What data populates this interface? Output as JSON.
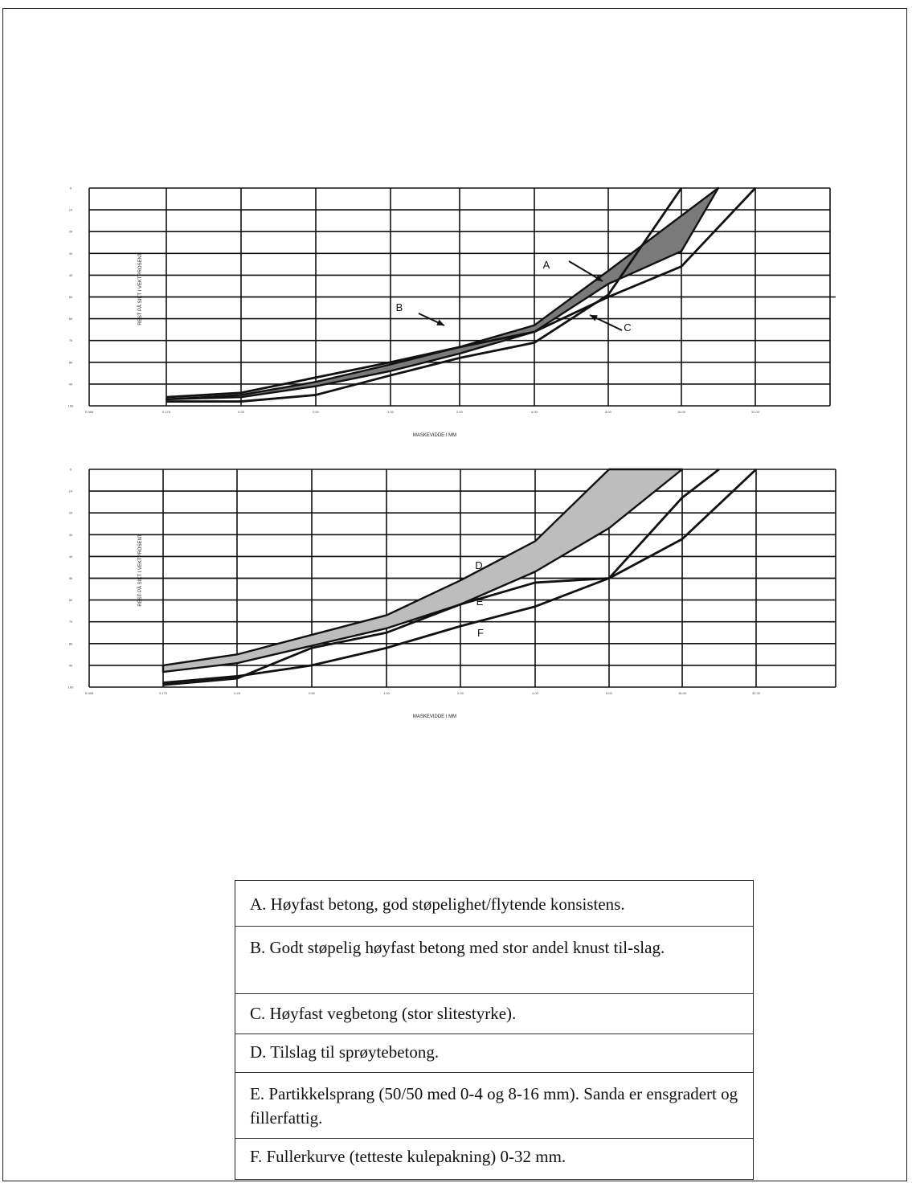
{
  "chart_data": [
    {
      "type": "area",
      "xlabel": "MASKEVIDDE I MM",
      "ylabel": "REST PÅ SIKT I VEKTPROSENT",
      "x_tick_labels": [
        "0.088",
        "0.175",
        "0.25",
        "0.50",
        "1.00",
        "2.00",
        "4.00",
        "8.00",
        "16.00",
        "32.00"
      ],
      "y_tick_labels": [
        "0",
        "10",
        "20",
        "30",
        "40",
        "50",
        "60",
        "70",
        "80",
        "90",
        "100"
      ],
      "ylim": [
        0,
        100
      ],
      "y_inverted": true,
      "grid": true,
      "series": [
        {
          "name": "A",
          "kind": "band",
          "lower": [
            [
              0.175,
              97
            ],
            [
              0.25,
              95
            ],
            [
              0.5,
              89
            ],
            [
              1,
              81
            ],
            [
              2,
              73
            ],
            [
              4,
              63
            ],
            [
              8,
              38
            ],
            [
              22.6,
              0
            ]
          ],
          "upper": [
            [
              0.175,
              97
            ],
            [
              0.25,
              96
            ],
            [
              0.5,
              91
            ],
            [
              1,
              84
            ],
            [
              2,
              76
            ],
            [
              4,
              66
            ],
            [
              8,
              44
            ],
            [
              16,
              29
            ],
            [
              22.6,
              0
            ]
          ]
        },
        {
          "name": "B",
          "kind": "line",
          "points": [
            [
              0.175,
              96
            ],
            [
              0.25,
              94
            ],
            [
              0.5,
              87
            ],
            [
              1,
              80
            ],
            [
              2,
              73
            ],
            [
              4,
              66
            ],
            [
              8,
              50
            ],
            [
              16,
              36
            ],
            [
              32,
              0
            ]
          ]
        },
        {
          "name": "C",
          "kind": "line",
          "points": [
            [
              0.175,
              98
            ],
            [
              0.25,
              98
            ],
            [
              0.5,
              95
            ],
            [
              1,
              86
            ],
            [
              2,
              78
            ],
            [
              4,
              71
            ],
            [
              8,
              49
            ],
            [
              16,
              0
            ]
          ]
        }
      ],
      "annotations": [
        "A",
        "B",
        "C"
      ]
    },
    {
      "type": "area",
      "xlabel": "MASKEVIDDE I MM",
      "ylabel": "REST PÅ SIKT I VEKTPROSENT",
      "x_tick_labels": [
        "0.088",
        "0.175",
        "0.25",
        "0.50",
        "1.00",
        "2.00",
        "4.00",
        "8.00",
        "16.00",
        "32.00"
      ],
      "y_tick_labels": [
        "0",
        "10",
        "20",
        "30",
        "40",
        "50",
        "60",
        "70",
        "80",
        "90",
        "100"
      ],
      "ylim": [
        0,
        100
      ],
      "y_inverted": true,
      "grid": true,
      "series": [
        {
          "name": "D",
          "kind": "band",
          "lower": [
            [
              0.175,
              93
            ],
            [
              0.25,
              89
            ],
            [
              0.5,
              81
            ],
            [
              1,
              73
            ],
            [
              2,
              62
            ],
            [
              4,
              47
            ],
            [
              8,
              27
            ],
            [
              16,
              0
            ]
          ],
          "upper": [
            [
              0.175,
              90
            ],
            [
              0.25,
              85
            ],
            [
              0.5,
              76
            ],
            [
              1,
              67
            ],
            [
              2,
              51
            ],
            [
              4,
              33
            ],
            [
              8,
              0
            ]
          ]
        },
        {
          "name": "E",
          "kind": "line",
          "points": [
            [
              0.175,
              99
            ],
            [
              0.25,
              96
            ],
            [
              0.5,
              82
            ],
            [
              1,
              75
            ],
            [
              2,
              62
            ],
            [
              4,
              52
            ],
            [
              8,
              50
            ],
            [
              16,
              13
            ],
            [
              22.6,
              0
            ]
          ]
        },
        {
          "name": "F",
          "kind": "line",
          "points": [
            [
              0.175,
              98
            ],
            [
              0.25,
              95
            ],
            [
              0.5,
              90
            ],
            [
              1,
              82
            ],
            [
              2,
              72
            ],
            [
              4,
              63
            ],
            [
              8,
              50
            ],
            [
              16,
              32
            ],
            [
              32,
              0
            ]
          ]
        }
      ],
      "annotations": [
        "D",
        "E",
        "F"
      ]
    }
  ],
  "legend": {
    "items": [
      "A. Høyfast betong, god støpelighet/flytende konsistens.",
      "B. Godt støpelig høyfast betong med stor andel knust til-slag.",
      "C. Høyfast vegbetong (stor slitestyrke).",
      "D. Tilslag til sprøytebetong.",
      "E. Partikkelsprang (50/50 med 0-4 og 8-16 mm). Sanda er ensgradert og fillerfattig.",
      "F. Fullerkurve (tetteste kulepakning) 0-32 mm."
    ]
  },
  "colors": {
    "band_dark": "#7a7a7a",
    "band_light": "#bdbdbd",
    "line": "#111111",
    "grid": "#111111"
  }
}
